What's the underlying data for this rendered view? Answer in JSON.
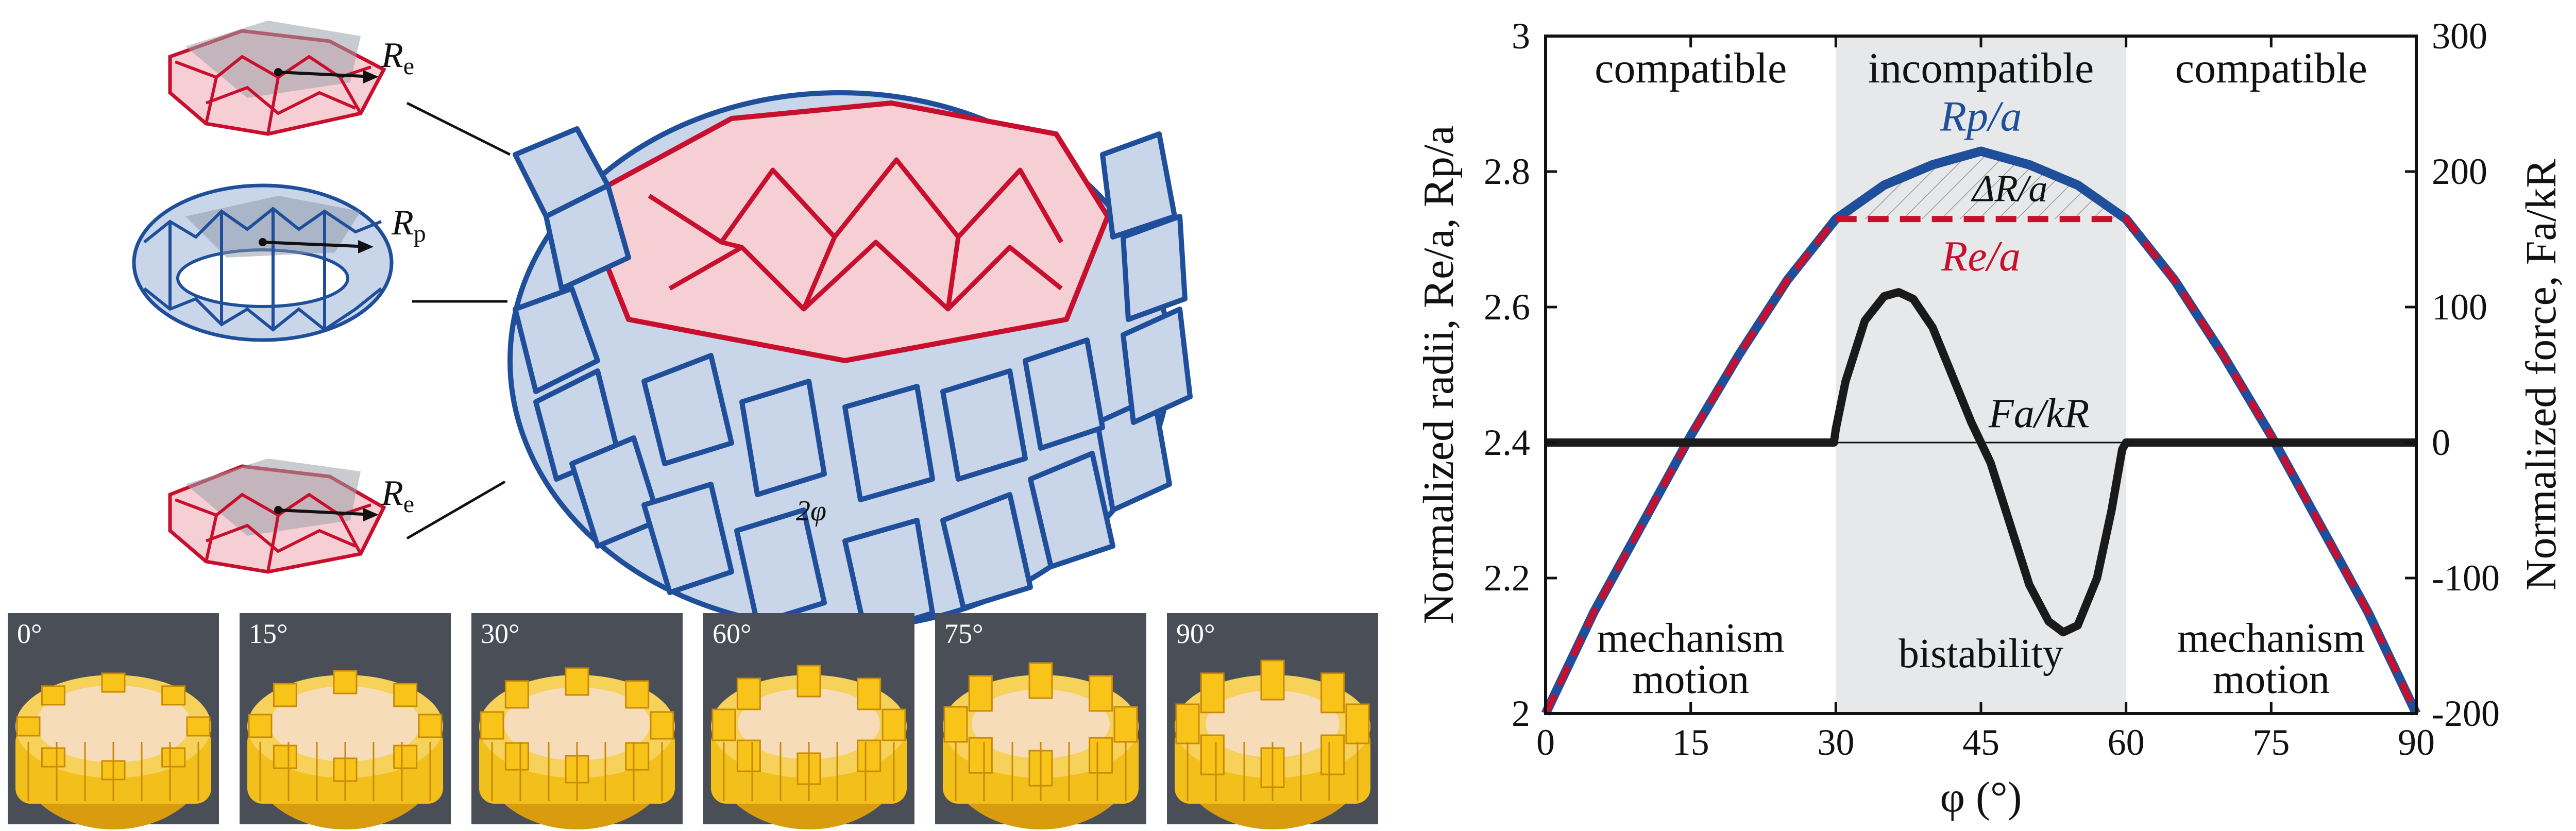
{
  "left_panel": {
    "labels": {
      "re_top": "R",
      "re_top_sub": "e",
      "rp_mid": "R",
      "rp_mid_sub": "p",
      "re_bot": "R",
      "re_bot_sub": "e",
      "angle": "2φ"
    },
    "photos": [
      {
        "label": "0°"
      },
      {
        "label": "15°"
      },
      {
        "label": "30°"
      },
      {
        "label": "60°"
      },
      {
        "label": "75°"
      },
      {
        "label": "90°"
      }
    ],
    "colors": {
      "red": "#c8102e",
      "blue": "#1f4e9a",
      "red_fill": "#f6cfd4",
      "blue_fill": "#c9d6ea",
      "photo_bg": "#4a4f57",
      "yellow": "#f3bf1a"
    }
  },
  "chart_data": {
    "type": "line",
    "xlabel": "φ (°)",
    "ylabel_left": "Normalized radii, Re/a, Rp/a",
    "ylabel_right": "Normalized force, Fa/kR",
    "xlim": [
      0,
      90
    ],
    "ylim_left": [
      2,
      3
    ],
    "ylim_right": [
      -200,
      300
    ],
    "xticks": [
      0,
      15,
      30,
      45,
      60,
      75,
      90
    ],
    "yticks_left": [
      2,
      2.2,
      2.4,
      2.6,
      2.8,
      3
    ],
    "ytick_labels_left": [
      "2",
      "2.2",
      "2.4",
      "2.6",
      "2.8",
      "3"
    ],
    "yticks_right": [
      -200,
      -100,
      0,
      100,
      200,
      300
    ],
    "shaded_region": [
      30,
      60
    ],
    "region_labels": {
      "left_top": "compatible",
      "mid_top": "incompatible",
      "right_top": "compatible",
      "left_bottom_1": "mechanism",
      "left_bottom_2": "motion",
      "mid_bottom": "bistability",
      "right_bottom_1": "mechanism",
      "right_bottom_2": "motion"
    },
    "annotations": {
      "rp": "Rp/a",
      "delta": "ΔR/a",
      "re": "Re/a",
      "force": "Fa/kR"
    },
    "series": [
      {
        "name": "Rp/a",
        "color": "#1f4e9a",
        "x": [
          0,
          5,
          10,
          15,
          20,
          25,
          30,
          35,
          40,
          45,
          50,
          55,
          60,
          65,
          70,
          75,
          80,
          85,
          90
        ],
        "values": [
          2.0,
          2.15,
          2.28,
          2.41,
          2.53,
          2.64,
          2.73,
          2.78,
          2.81,
          2.83,
          2.81,
          2.78,
          2.73,
          2.64,
          2.53,
          2.41,
          2.28,
          2.15,
          2.0
        ]
      },
      {
        "name": "Re/a",
        "color": "#c8102e",
        "x": [
          0,
          5,
          10,
          15,
          20,
          25,
          30,
          35,
          40,
          45,
          50,
          55,
          60,
          65,
          70,
          75,
          80,
          85,
          90
        ],
        "values": [
          2.0,
          2.15,
          2.28,
          2.41,
          2.53,
          2.64,
          2.73,
          2.73,
          2.73,
          2.73,
          2.73,
          2.73,
          2.73,
          2.64,
          2.53,
          2.41,
          2.28,
          2.15,
          2.0
        ]
      },
      {
        "name": "Fa/kR",
        "color": "#1a1a1a",
        "x": [
          0,
          29.8,
          30,
          31,
          33,
          35,
          36.5,
          38,
          40,
          42,
          44,
          45,
          46,
          48,
          50,
          52,
          53.5,
          55,
          57,
          58.5,
          59.6,
          60,
          90
        ],
        "values": [
          0,
          0,
          10,
          45,
          90,
          108,
          111,
          106,
          85,
          50,
          15,
          0,
          -15,
          -60,
          -105,
          -132,
          -140,
          -135,
          -100,
          -50,
          -5,
          0,
          0
        ]
      }
    ],
    "reference_line_y_right": 0
  }
}
